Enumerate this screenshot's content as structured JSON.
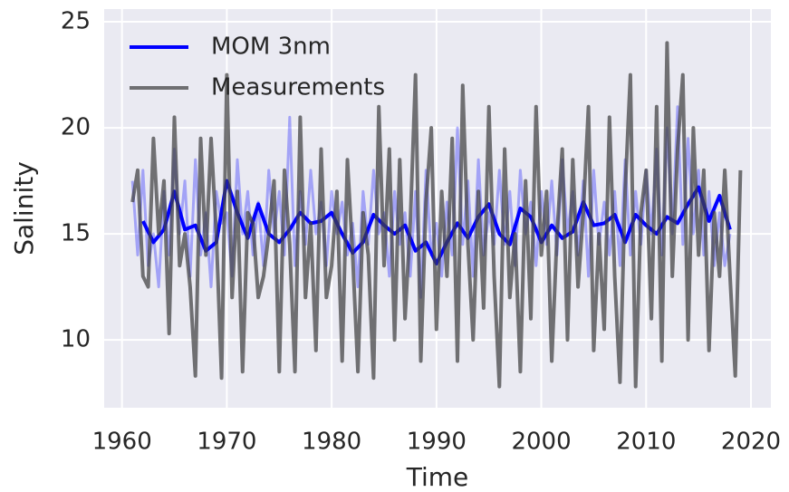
{
  "chart_data": {
    "type": "line",
    "xlabel": "Time",
    "ylabel": "Salinity",
    "xlim": [
      1958.3,
      2021.9
    ],
    "ylim": [
      6.8,
      25.6
    ],
    "xticks": [
      1960,
      1970,
      1980,
      1990,
      2000,
      2010,
      2020
    ],
    "yticks": [
      10,
      15,
      20,
      25
    ],
    "grid": true,
    "legend": "upper left",
    "series": [
      {
        "color": "#0000ff",
        "opacity": 0.3,
        "x": [
          1961,
          1961.5,
          1962,
          1962.5,
          1963,
          1963.5,
          1964,
          1964.5,
          1965,
          1965.5,
          1966,
          1966.5,
          1967,
          1967.5,
          1968,
          1968.5,
          1969,
          1969.5,
          1970,
          1970.5,
          1971,
          1971.5,
          1972,
          1972.5,
          1973,
          1973.5,
          1974,
          1974.5,
          1975,
          1975.5,
          1976,
          1976.5,
          1977,
          1977.5,
          1978,
          1978.5,
          1979,
          1979.5,
          1980,
          1980.5,
          1981,
          1981.5,
          1982,
          1982.5,
          1983,
          1983.5,
          1984,
          1984.5,
          1985,
          1985.5,
          1986,
          1986.5,
          1987,
          1987.5,
          1988,
          1988.5,
          1989,
          1989.5,
          1990,
          1990.5,
          1991,
          1991.5,
          1992,
          1992.5,
          1993,
          1993.5,
          1994,
          1994.5,
          1995,
          1995.5,
          1996,
          1996.5,
          1997,
          1997.5,
          1998,
          1998.5,
          1999,
          1999.5,
          2000,
          2000.5,
          2001,
          2001.5,
          2002,
          2002.5,
          2003,
          2003.5,
          2004,
          2004.5,
          2005,
          2005.5,
          2006,
          2006.5,
          2007,
          2007.5,
          2008,
          2008.5,
          2009,
          2009.5,
          2010,
          2010.5,
          2011,
          2011.5,
          2012,
          2012.5,
          2013,
          2013.5,
          2014,
          2014.5,
          2015,
          2015.5,
          2016,
          2016.5,
          2017,
          2017.5,
          2018
        ],
        "values": [
          17.5,
          14,
          18,
          13.5,
          15,
          12.5,
          17,
          14,
          19,
          15,
          17.5,
          13,
          18.5,
          14,
          16,
          12.5,
          17,
          15.5,
          16,
          13,
          18.5,
          15,
          17,
          14,
          16.5,
          13.5,
          18,
          15,
          17,
          14,
          20.5,
          13.5,
          17,
          14.5,
          18,
          15,
          16.5,
          13.5,
          17,
          15,
          16.5,
          14,
          15.5,
          12.5,
          17,
          14.5,
          18,
          15,
          16,
          13,
          17,
          14.5,
          16,
          13,
          17,
          12,
          18,
          14,
          15.5,
          13,
          16.5,
          14,
          20,
          14.5,
          17.5,
          13,
          18.5,
          14,
          16,
          14.5,
          18,
          14.5,
          17,
          13.5,
          18,
          15,
          16.5,
          13.5,
          17,
          14.5,
          17.5,
          14,
          18.5,
          15,
          17,
          14,
          17.5,
          13,
          18,
          14.5,
          16.5,
          14,
          17,
          13.5,
          18.5,
          14,
          17,
          14.5,
          18,
          15,
          19,
          14,
          20,
          15,
          21,
          14.5,
          19.5,
          15,
          18,
          14,
          17,
          13.5,
          16,
          13.5,
          15
        ]
      },
      {
        "name": "MOM 3nm",
        "color": "#0000ff",
        "opacity": 1,
        "x": [
          1962,
          1963,
          1964,
          1965,
          1966,
          1967,
          1968,
          1969,
          1970,
          1971,
          1972,
          1973,
          1974,
          1975,
          1976,
          1977,
          1978,
          1979,
          1980,
          1981,
          1982,
          1983,
          1984,
          1985,
          1986,
          1987,
          1988,
          1989,
          1990,
          1991,
          1992,
          1993,
          1994,
          1995,
          1996,
          1997,
          1998,
          1999,
          2000,
          2001,
          2002,
          2003,
          2004,
          2005,
          2006,
          2007,
          2008,
          2009,
          2010,
          2011,
          2012,
          2013,
          2014,
          2015,
          2016,
          2017,
          2018
        ],
        "values": [
          15.6,
          14.6,
          15.2,
          17.0,
          15.2,
          15.4,
          14.2,
          14.6,
          17.5,
          16.0,
          14.8,
          16.4,
          15.0,
          14.6,
          15.2,
          16.0,
          15.5,
          15.6,
          16.0,
          15.0,
          14.1,
          14.6,
          15.9,
          15.4,
          15.0,
          15.4,
          14.2,
          14.6,
          13.6,
          14.6,
          15.5,
          14.8,
          15.8,
          16.4,
          15.0,
          14.5,
          16.2,
          15.8,
          14.6,
          15.4,
          14.8,
          15.1,
          16.5,
          15.4,
          15.5,
          15.9,
          14.6,
          15.9,
          15.4,
          15.0,
          15.8,
          15.5,
          16.4,
          17.2,
          15.6,
          16.8,
          15.2
        ]
      },
      {
        "name": "Measurements",
        "color": "#404040",
        "opacity": 0.72,
        "x": [
          1961,
          1961.5,
          1962,
          1962.5,
          1963,
          1963.5,
          1964,
          1964.5,
          1965,
          1965.5,
          1966,
          1966.5,
          1967,
          1967.5,
          1968,
          1968.5,
          1969,
          1969.5,
          1970,
          1970.5,
          1971,
          1971.5,
          1972,
          1972.5,
          1973,
          1973.5,
          1974,
          1974.5,
          1975,
          1975.5,
          1976,
          1976.5,
          1977,
          1977.5,
          1978,
          1978.5,
          1979,
          1979.5,
          1980,
          1980.5,
          1981,
          1981.5,
          1982,
          1982.5,
          1983,
          1983.5,
          1984,
          1984.5,
          1985,
          1985.5,
          1986,
          1986.5,
          1987,
          1987.5,
          1988,
          1988.5,
          1989,
          1989.5,
          1990,
          1990.5,
          1991,
          1991.5,
          1992,
          1992.5,
          1993,
          1993.5,
          1994,
          1994.5,
          1995,
          1995.5,
          1996,
          1996.5,
          1997,
          1997.5,
          1998,
          1998.5,
          1999,
          1999.5,
          2000,
          2000.5,
          2001,
          2001.5,
          2002,
          2002.5,
          2003,
          2003.5,
          2004,
          2004.5,
          2005,
          2005.5,
          2006,
          2006.5,
          2007,
          2007.5,
          2008,
          2008.5,
          2009,
          2009.5,
          2010,
          2010.5,
          2011,
          2011.5,
          2012,
          2012.5,
          2013,
          2013.5,
          2014,
          2014.5,
          2015,
          2015.5,
          2016,
          2016.5,
          2017,
          2017.5,
          2018,
          2018.5,
          2019
        ],
        "values": [
          16.5,
          18,
          13,
          12.5,
          19.5,
          15,
          17.5,
          10.3,
          20.5,
          13.5,
          15,
          12.5,
          8.3,
          19.5,
          14,
          19.5,
          15,
          8.2,
          22.5,
          12,
          17,
          8.5,
          16,
          15.5,
          12,
          13,
          15,
          17.5,
          8.5,
          18,
          14.5,
          8.5,
          20.5,
          12,
          15.5,
          9.5,
          19,
          12,
          13.5,
          17,
          9,
          18.5,
          14,
          8.5,
          16,
          14,
          8.2,
          21,
          13.5,
          19,
          10,
          18.5,
          11,
          15.5,
          22.5,
          9,
          16.5,
          20,
          10.5,
          17,
          13,
          19.5,
          9,
          22,
          14.5,
          10,
          17,
          11.5,
          21,
          13,
          7.8,
          19,
          12,
          15,
          8.5,
          17.5,
          11,
          21,
          14,
          17,
          9,
          15,
          19,
          10,
          18.5,
          12.5,
          16,
          21,
          9.5,
          15,
          10.5,
          20.5,
          13,
          8,
          17,
          22.5,
          7.8,
          16,
          18,
          11,
          21,
          9,
          24,
          13,
          19,
          22.5,
          10,
          20,
          14,
          18,
          9.5,
          16,
          13,
          18,
          13,
          8.3,
          18
        ]
      }
    ]
  }
}
